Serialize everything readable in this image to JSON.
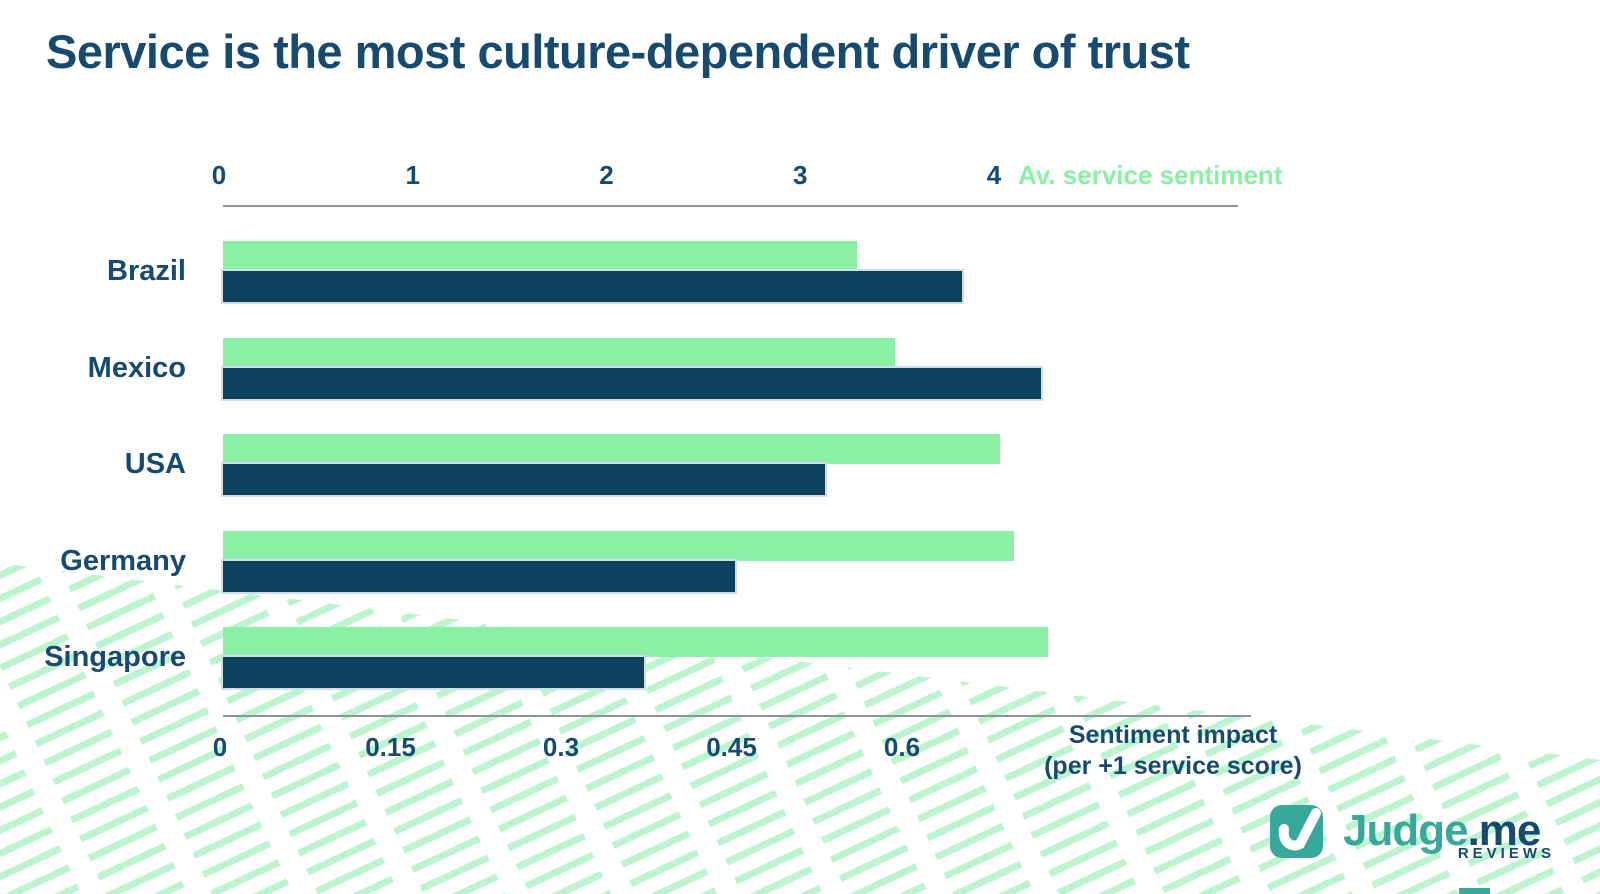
{
  "title": "Service is the most culture-dependent driver of trust",
  "chart_data": {
    "type": "bar",
    "orientation": "horizontal",
    "categories": [
      "Brazil",
      "Mexico",
      "USA",
      "Germany",
      "Singapore"
    ],
    "series": [
      {
        "name": "Av. service sentiment",
        "axis": "top",
        "color": "#8BEFA6",
        "values": [
          3.27,
          3.47,
          4.01,
          4.08,
          4.26
        ]
      },
      {
        "name": "Sentiment impact (per +1 service score)",
        "axis": "bottom",
        "color": "#0D415E",
        "values": [
          0.65,
          0.72,
          0.53,
          0.45,
          0.37
        ]
      }
    ],
    "top_axis": {
      "label": "Av. service sentiment",
      "ticks": [
        "0",
        "1",
        "2",
        "3",
        "4"
      ],
      "range": [
        0,
        4
      ],
      "label_color": "#8BEFA6"
    },
    "bottom_axis": {
      "label_line1": "Sentiment impact",
      "label_line2": "(per +1 service score)",
      "ticks": [
        "0",
        "0.15",
        "0.3",
        "0.45",
        "0.6"
      ],
      "range": [
        0,
        0.6
      ],
      "label_color": "#164A6E"
    },
    "grid": false,
    "legend_position": "inline-axis-labels"
  },
  "branding": {
    "logo_primary": "Judge",
    "logo_secondary": ".me",
    "logo_sub": "REVIEWS"
  },
  "colors": {
    "bar_green": "#8BEFA6",
    "bar_navy": "#0D415E",
    "text_navy": "#164A6E",
    "logo_teal": "#38A89A",
    "hatch_green": "#BDF4D0",
    "axis_line": "#8C9499",
    "background": "#FFFFFF"
  }
}
